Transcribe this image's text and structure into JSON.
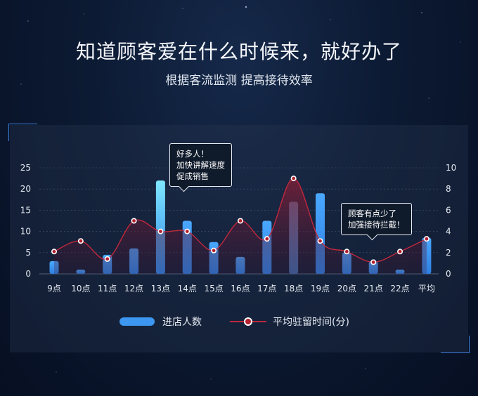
{
  "header": {
    "title": "知道顾客爱在什么时候来，就好办了",
    "subtitle": "根据客流监测 提高接待效率"
  },
  "callouts": [
    {
      "lines": [
        "好多人！",
        "加快讲解速度",
        "促成销售"
      ]
    },
    {
      "lines": [
        "顾客有点少了",
        "加强接待拦截！"
      ]
    }
  ],
  "legend": {
    "bars": "进店人数",
    "line": "平均驻留时间(分)"
  },
  "colors": {
    "bar": "#3d97f0",
    "bar_highlight": "#6fe0ff",
    "bar_dim": "#5b7fae",
    "line": "#c0283c",
    "area": "#8a1f36"
  },
  "chart_data": {
    "type": "bar",
    "categories": [
      "9点",
      "10点",
      "11点",
      "12点",
      "13点",
      "14点",
      "15点",
      "16点",
      "17点",
      "18点",
      "19点",
      "20点",
      "21点",
      "22点",
      "平均"
    ],
    "series": [
      {
        "name": "进店人数",
        "axis": "left",
        "kind": "bar",
        "values": [
          3,
          1,
          4.5,
          6,
          22,
          12.5,
          7.5,
          4,
          12.5,
          17,
          19,
          5,
          3,
          1,
          8.5
        ]
      },
      {
        "name": "平均驻留时间(分)",
        "axis": "right",
        "kind": "line",
        "values": [
          2.1,
          3.1,
          1.4,
          5.0,
          4.0,
          4.0,
          2.2,
          5.0,
          3.3,
          9.0,
          3.1,
          2.1,
          1.1,
          2.1,
          3.3
        ]
      }
    ],
    "y_left": {
      "ticks": [
        "0",
        "5",
        "10",
        "15",
        "20",
        "25"
      ],
      "range": [
        0,
        25
      ]
    },
    "y_right": {
      "ticks": [
        "0",
        "2",
        "4",
        "6",
        "8",
        "10"
      ],
      "range": [
        0,
        10
      ]
    },
    "grid": true,
    "legend_position": "bottom"
  }
}
